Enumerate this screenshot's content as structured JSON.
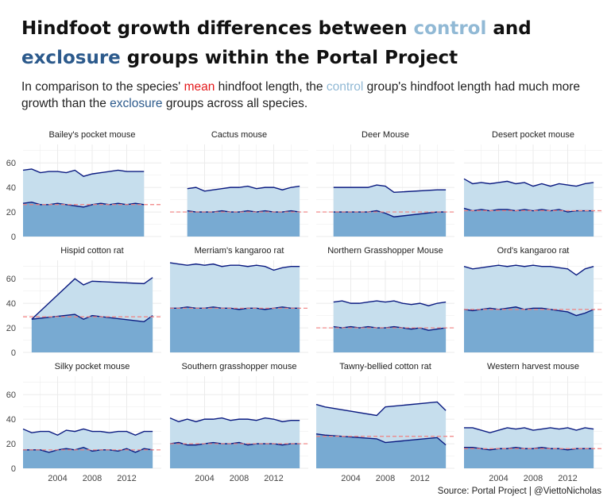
{
  "title": {
    "part1": "Hindfoot growth differences between ",
    "control": "control",
    "part2": " and",
    "exclosure": "exclosure",
    "part3": " groups within the Portal Project"
  },
  "subtitle": {
    "part1": "In comparison to the species' ",
    "mean": "mean",
    "part2": " hindfoot length, the ",
    "control": "control",
    "part3": " group's hindfoot length had much more growth than the ",
    "exclosure": "exclosure",
    "part4": " groups across all species."
  },
  "caption": "Source: Portal Project | @ViettoNicholas",
  "colors": {
    "control_fill": "#c6deed",
    "exclosure_fill": "#78aad2",
    "line": "#0a1a80",
    "mean_line": "#f08080",
    "grid": "#ebebeb",
    "control_title": "#91b9d5",
    "exclosure_title": "#2c5a8c",
    "mean_text": "#e41a1c"
  },
  "chart_data": {
    "type": "area",
    "xlim": [
      2000,
      2016
    ],
    "ylim": [
      0,
      75
    ],
    "x_ticks": [
      "2004",
      "2008",
      "2012"
    ],
    "y_ticks": [
      "0",
      "20",
      "40",
      "60"
    ],
    "facets": [
      {
        "name": "Bailey's pocket mouse",
        "mean": 26,
        "control": {
          "x": [
            2000,
            2001,
            2002,
            2003,
            2004,
            2005,
            2006,
            2007,
            2008,
            2009,
            2010,
            2011,
            2012,
            2013,
            2014
          ],
          "y": [
            54,
            55,
            52,
            53,
            53,
            52,
            54,
            49,
            51,
            52,
            53,
            54,
            53,
            53,
            53
          ]
        },
        "exclosure": {
          "x": [
            2000,
            2001,
            2002,
            2003,
            2004,
            2005,
            2006,
            2007,
            2008,
            2009,
            2010,
            2011,
            2012,
            2013,
            2014
          ],
          "y": [
            27,
            28,
            26,
            26,
            27,
            26,
            25,
            24,
            26,
            27,
            26,
            27,
            26,
            27,
            26
          ]
        }
      },
      {
        "name": "Cactus mouse",
        "mean": 20,
        "control": {
          "x": [
            2002,
            2003,
            2004,
            2005,
            2006,
            2007,
            2008,
            2009,
            2010,
            2011,
            2012,
            2013,
            2014,
            2015
          ],
          "y": [
            39,
            40,
            37,
            38,
            39,
            40,
            40,
            41,
            39,
            40,
            40,
            38,
            40,
            41
          ]
        },
        "exclosure": {
          "x": [
            2002,
            2003,
            2004,
            2005,
            2006,
            2007,
            2008,
            2009,
            2010,
            2011,
            2012,
            2013,
            2014,
            2015
          ],
          "y": [
            21,
            20,
            20,
            20,
            21,
            20,
            20,
            21,
            20,
            21,
            20,
            20,
            21,
            20
          ]
        }
      },
      {
        "name": "Deer Mouse",
        "mean": 20,
        "control": {
          "x": [
            2002,
            2006,
            2007,
            2008,
            2009,
            2014,
            2015
          ],
          "y": [
            40,
            40,
            42,
            41,
            36,
            38,
            38
          ]
        },
        "exclosure": {
          "x": [
            2002,
            2006,
            2007,
            2008,
            2009,
            2014,
            2015
          ],
          "y": [
            20,
            20,
            21,
            19,
            16,
            20,
            20
          ]
        }
      },
      {
        "name": "Desert pocket mouse",
        "mean": 21,
        "control": {
          "x": [
            2000,
            2001,
            2002,
            2003,
            2004,
            2005,
            2006,
            2007,
            2008,
            2009,
            2010,
            2011,
            2012,
            2013,
            2014,
            2015
          ],
          "y": [
            47,
            43,
            44,
            43,
            44,
            45,
            43,
            44,
            41,
            43,
            41,
            43,
            42,
            41,
            43,
            44
          ]
        },
        "exclosure": {
          "x": [
            2000,
            2001,
            2002,
            2003,
            2004,
            2005,
            2006,
            2007,
            2008,
            2009,
            2010,
            2011,
            2012,
            2013,
            2014,
            2015
          ],
          "y": [
            23,
            21,
            22,
            21,
            22,
            22,
            21,
            22,
            21,
            22,
            21,
            22,
            20,
            21,
            21,
            21
          ]
        }
      },
      {
        "name": "Hispid cotton rat",
        "mean": 29,
        "control": {
          "x": [
            2001,
            2006,
            2007,
            2008,
            2014,
            2015
          ],
          "y": [
            27,
            60,
            55,
            58,
            56,
            61
          ]
        },
        "exclosure": {
          "x": [
            2001,
            2006,
            2007,
            2008,
            2014,
            2015
          ],
          "y": [
            27,
            31,
            27,
            30,
            25,
            30
          ]
        }
      },
      {
        "name": "Merriam's kangaroo rat",
        "mean": 36,
        "control": {
          "x": [
            2000,
            2001,
            2002,
            2003,
            2004,
            2005,
            2006,
            2007,
            2008,
            2009,
            2010,
            2011,
            2012,
            2013,
            2014,
            2015
          ],
          "y": [
            73,
            72,
            71,
            72,
            71,
            72,
            70,
            71,
            71,
            70,
            71,
            70,
            67,
            69,
            70,
            70
          ]
        },
        "exclosure": {
          "x": [
            2000,
            2001,
            2002,
            2003,
            2004,
            2005,
            2006,
            2007,
            2008,
            2009,
            2010,
            2011,
            2012,
            2013,
            2014,
            2015
          ],
          "y": [
            36,
            36,
            37,
            36,
            36,
            37,
            36,
            36,
            35,
            36,
            36,
            35,
            36,
            37,
            36,
            36
          ]
        }
      },
      {
        "name": "Northern Grasshopper Mouse",
        "mean": 20,
        "control": {
          "x": [
            2002,
            2003,
            2004,
            2005,
            2006,
            2007,
            2008,
            2009,
            2010,
            2011,
            2012,
            2013,
            2014,
            2015
          ],
          "y": [
            41,
            42,
            40,
            40,
            41,
            42,
            41,
            42,
            40,
            39,
            40,
            38,
            40,
            41
          ]
        },
        "exclosure": {
          "x": [
            2002,
            2003,
            2004,
            2005,
            2006,
            2007,
            2008,
            2009,
            2010,
            2011,
            2012,
            2013,
            2014,
            2015
          ],
          "y": [
            21,
            20,
            21,
            20,
            21,
            20,
            20,
            21,
            20,
            19,
            20,
            18,
            19,
            20
          ]
        }
      },
      {
        "name": "Ord's kangaroo rat",
        "mean": 35,
        "control": {
          "x": [
            2000,
            2001,
            2002,
            2003,
            2004,
            2005,
            2006,
            2007,
            2008,
            2009,
            2010,
            2011,
            2012,
            2013,
            2014,
            2015
          ],
          "y": [
            70,
            68,
            69,
            70,
            71,
            70,
            71,
            70,
            71,
            70,
            70,
            69,
            68,
            63,
            68,
            70
          ]
        },
        "exclosure": {
          "x": [
            2000,
            2001,
            2002,
            2003,
            2004,
            2005,
            2006,
            2007,
            2008,
            2009,
            2010,
            2011,
            2012,
            2013,
            2014,
            2015
          ],
          "y": [
            35,
            34,
            35,
            36,
            35,
            36,
            37,
            35,
            36,
            36,
            35,
            34,
            33,
            30,
            32,
            35
          ]
        }
      },
      {
        "name": "Silky pocket mouse",
        "mean": 15,
        "control": {
          "x": [
            2000,
            2001,
            2002,
            2003,
            2004,
            2005,
            2006,
            2007,
            2008,
            2009,
            2010,
            2011,
            2012,
            2013,
            2014,
            2015
          ],
          "y": [
            32,
            29,
            30,
            30,
            27,
            31,
            30,
            32,
            30,
            30,
            29,
            30,
            30,
            27,
            30,
            30
          ]
        },
        "exclosure": {
          "x": [
            2000,
            2001,
            2002,
            2003,
            2004,
            2005,
            2006,
            2007,
            2008,
            2009,
            2010,
            2011,
            2012,
            2013,
            2014,
            2015
          ],
          "y": [
            15,
            15,
            15,
            13,
            15,
            16,
            15,
            17,
            14,
            15,
            15,
            14,
            16,
            13,
            16,
            15
          ]
        }
      },
      {
        "name": "Southern grasshopper mouse",
        "mean": 20,
        "control": {
          "x": [
            2000,
            2001,
            2002,
            2003,
            2004,
            2005,
            2006,
            2007,
            2008,
            2009,
            2010,
            2011,
            2012,
            2013,
            2014,
            2015
          ],
          "y": [
            41,
            38,
            40,
            38,
            40,
            40,
            41,
            39,
            40,
            40,
            39,
            41,
            40,
            38,
            39,
            39
          ]
        },
        "exclosure": {
          "x": [
            2000,
            2001,
            2002,
            2003,
            2004,
            2005,
            2006,
            2007,
            2008,
            2009,
            2010,
            2011,
            2012,
            2013,
            2014,
            2015
          ],
          "y": [
            20,
            21,
            19,
            19,
            20,
            21,
            20,
            20,
            21,
            19,
            20,
            20,
            20,
            19,
            20,
            20
          ]
        }
      },
      {
        "name": "Tawny-bellied cotton rat",
        "mean": 26,
        "control": {
          "x": [
            2000,
            2001,
            2007,
            2008,
            2014,
            2015
          ],
          "y": [
            52,
            50,
            43,
            50,
            54,
            47
          ]
        },
        "exclosure": {
          "x": [
            2000,
            2001,
            2007,
            2008,
            2014,
            2015
          ],
          "y": [
            28,
            27,
            24,
            21,
            25,
            19
          ]
        }
      },
      {
        "name": "Western harvest mouse",
        "mean": 16,
        "control": {
          "x": [
            2000,
            2001,
            2002,
            2003,
            2004,
            2005,
            2006,
            2007,
            2008,
            2009,
            2010,
            2011,
            2012,
            2013,
            2014,
            2015
          ],
          "y": [
            33,
            33,
            31,
            29,
            31,
            33,
            32,
            33,
            31,
            32,
            33,
            32,
            33,
            31,
            33,
            32
          ]
        },
        "exclosure": {
          "x": [
            2000,
            2001,
            2002,
            2003,
            2004,
            2005,
            2006,
            2007,
            2008,
            2009,
            2010,
            2011,
            2012,
            2013,
            2014,
            2015
          ],
          "y": [
            17,
            17,
            16,
            15,
            16,
            16,
            17,
            16,
            16,
            17,
            16,
            16,
            15,
            16,
            16,
            16
          ]
        }
      }
    ]
  }
}
